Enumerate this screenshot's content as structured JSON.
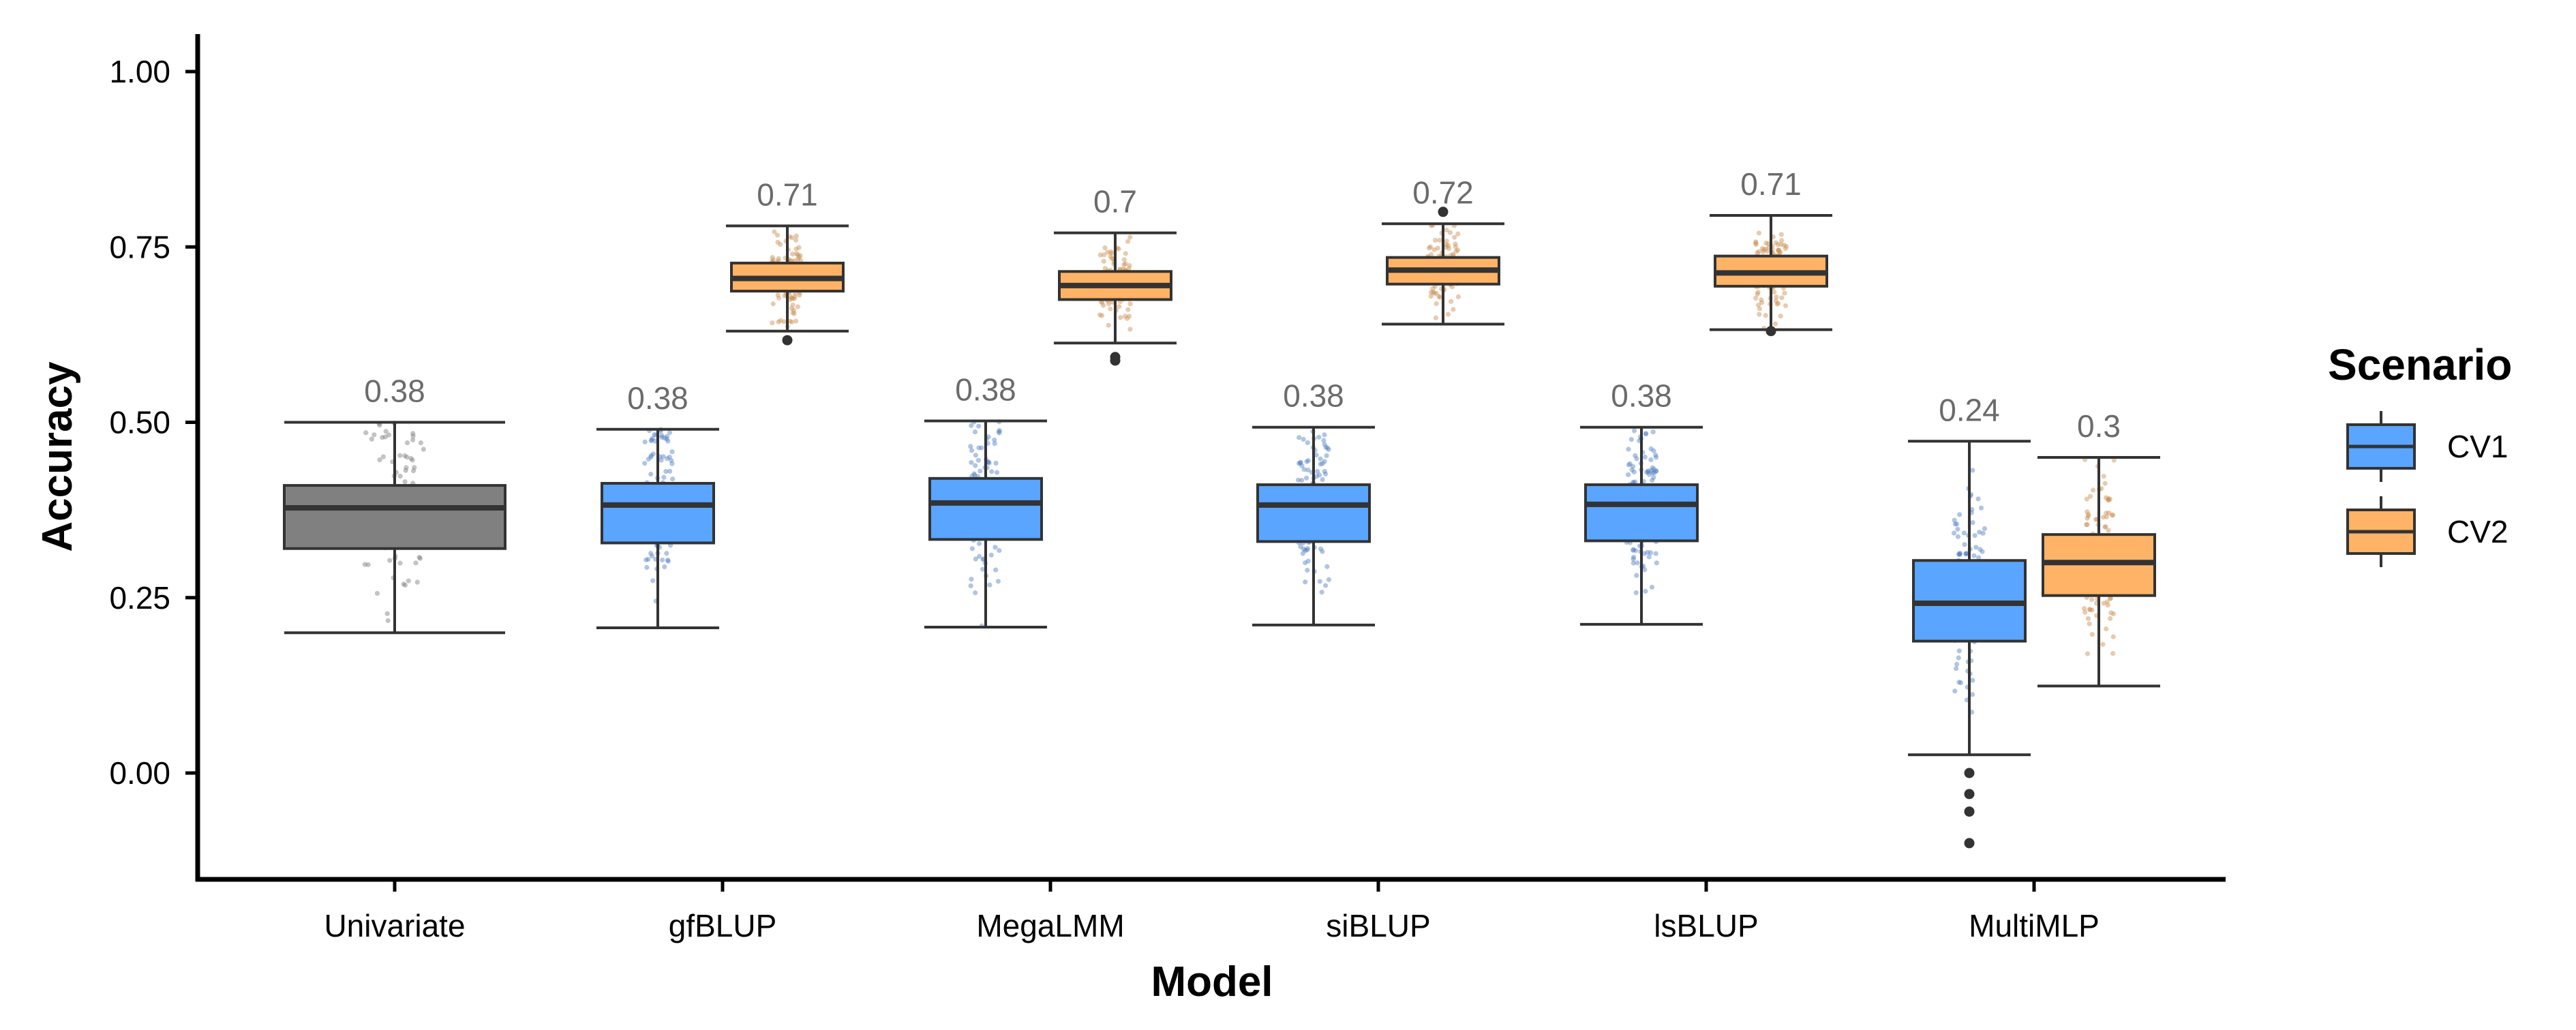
{
  "chart_data": {
    "type": "boxplot",
    "title": "",
    "xlabel": "Model",
    "ylabel": "Accuracy",
    "ylim": [
      -0.15,
      1.05
    ],
    "yticks": [
      0.0,
      0.25,
      0.5,
      0.75,
      1.0
    ],
    "ytick_labels": [
      "0.00",
      "0.25",
      "0.50",
      "0.75",
      "1.00"
    ],
    "categories": [
      "Univariate",
      "gfBLUP",
      "MegaLMM",
      "siBLUP",
      "lsBLUP",
      "MultiMLP"
    ],
    "legend": {
      "title": "Scenario",
      "position": "right",
      "entries": [
        {
          "name": "CV1",
          "color": "#5aa5ff"
        },
        {
          "name": "CV2",
          "color": "#ffb366"
        }
      ]
    },
    "colors": {
      "univariate": "#808080",
      "CV1": "#5aa5ff",
      "CV2": "#ffb366",
      "outline": "#333333",
      "label": "#6b6b6b"
    },
    "boxes": [
      {
        "category": "Univariate",
        "group": "single",
        "q1": 0.32,
        "median": 0.378,
        "q3": 0.41,
        "whisker_low": 0.2,
        "whisker_high": 0.5,
        "outliers": [],
        "label": "0.38"
      },
      {
        "category": "gfBLUP",
        "group": "CV1",
        "q1": 0.328,
        "median": 0.382,
        "q3": 0.413,
        "whisker_low": 0.207,
        "whisker_high": 0.49,
        "outliers": [],
        "label": "0.38"
      },
      {
        "category": "gfBLUP",
        "group": "CV2",
        "q1": 0.687,
        "median": 0.705,
        "q3": 0.727,
        "whisker_low": 0.63,
        "whisker_high": 0.78,
        "outliers": [
          0.617
        ],
        "label": "0.71"
      },
      {
        "category": "MegaLMM",
        "group": "CV1",
        "q1": 0.333,
        "median": 0.385,
        "q3": 0.42,
        "whisker_low": 0.208,
        "whisker_high": 0.502,
        "outliers": [],
        "label": "0.38"
      },
      {
        "category": "MegaLMM",
        "group": "CV2",
        "q1": 0.675,
        "median": 0.695,
        "q3": 0.715,
        "whisker_low": 0.613,
        "whisker_high": 0.77,
        "outliers": [
          0.593,
          0.588
        ],
        "label": "0.7"
      },
      {
        "category": "siBLUP",
        "group": "CV1",
        "q1": 0.33,
        "median": 0.382,
        "q3": 0.411,
        "whisker_low": 0.211,
        "whisker_high": 0.493,
        "outliers": [],
        "label": "0.38"
      },
      {
        "category": "siBLUP",
        "group": "CV2",
        "q1": 0.697,
        "median": 0.717,
        "q3": 0.735,
        "whisker_low": 0.64,
        "whisker_high": 0.783,
        "outliers": [
          0.8
        ],
        "label": "0.72"
      },
      {
        "category": "lsBLUP",
        "group": "CV1",
        "q1": 0.331,
        "median": 0.383,
        "q3": 0.411,
        "whisker_low": 0.212,
        "whisker_high": 0.493,
        "outliers": [],
        "label": "0.38"
      },
      {
        "category": "lsBLUP",
        "group": "CV2",
        "q1": 0.694,
        "median": 0.713,
        "q3": 0.737,
        "whisker_low": 0.632,
        "whisker_high": 0.795,
        "outliers": [
          0.63
        ],
        "label": "0.71"
      },
      {
        "category": "MultiMLP",
        "group": "CV1",
        "q1": 0.188,
        "median": 0.242,
        "q3": 0.303,
        "whisker_low": 0.026,
        "whisker_high": 0.473,
        "outliers": [
          0.0,
          -0.03,
          -0.055,
          -0.1
        ],
        "label": "0.24"
      },
      {
        "category": "MultiMLP",
        "group": "CV2",
        "q1": 0.253,
        "median": 0.3,
        "q3": 0.34,
        "whisker_low": 0.124,
        "whisker_high": 0.45,
        "outliers": [],
        "label": "0.3"
      }
    ]
  }
}
